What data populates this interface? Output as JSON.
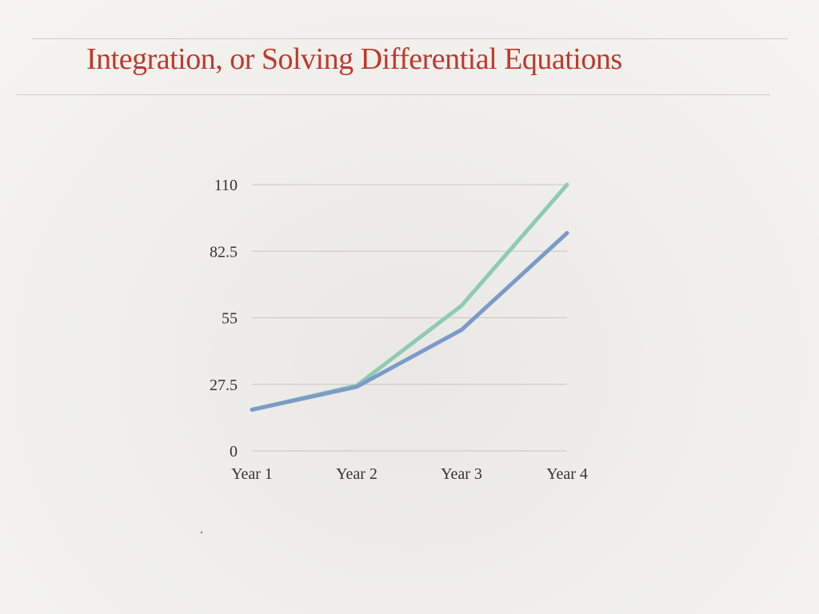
{
  "slide": {
    "title": "Integration, or Solving Differential Equations",
    "title_color": "#c0392b"
  },
  "chart_data": {
    "type": "line",
    "categories": [
      "Year 1",
      "Year 2",
      "Year 3",
      "Year 4"
    ],
    "series": [
      {
        "color": "#8fcbb0",
        "values": [
          17,
          27,
          60,
          110
        ]
      },
      {
        "color": "#7b9bc8",
        "values": [
          17,
          26.5,
          50,
          90
        ]
      }
    ],
    "y_ticks": [
      "0",
      "27.5",
      "55",
      "82.5",
      "110"
    ],
    "ylim": [
      0,
      110
    ],
    "grid": true,
    "legend": false,
    "title": "",
    "xlabel": "",
    "ylabel": ""
  }
}
